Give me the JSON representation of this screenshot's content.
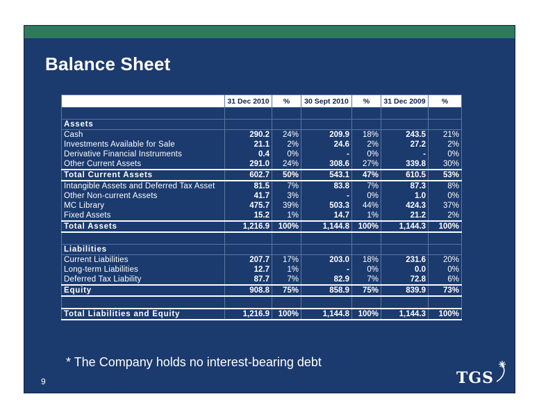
{
  "slide": {
    "title": "Balance Sheet",
    "footnote": "* The Company holds no interest-bearing debt",
    "page_number": "9",
    "logo_text": "TGS",
    "colors": {
      "background": "#1b3a6e",
      "top_bar": "#2f7a5c",
      "text": "#ffffff"
    }
  },
  "table": {
    "headers": [
      "",
      "31 Dec 2010",
      "%",
      "30 Sept 2010",
      "%",
      "31 Dec 2009",
      "%"
    ],
    "rows": [
      {
        "type": "blank",
        "cells": [
          "",
          "",
          "",
          "",
          "",
          "",
          ""
        ]
      },
      {
        "type": "section",
        "cells": [
          "Assets",
          "",
          "",
          "",
          "",
          "",
          ""
        ]
      },
      {
        "type": "row",
        "cells": [
          "Cash",
          "290.2",
          "24%",
          "209.9",
          "18%",
          "243.5",
          "21%"
        ]
      },
      {
        "type": "row",
        "cells": [
          "Investments Available for Sale",
          "21.1",
          "2%",
          "24.6",
          "2%",
          "27.2",
          "2%"
        ]
      },
      {
        "type": "row",
        "cells": [
          "Derivative Financial Instruments",
          "0.4",
          "0%",
          "-",
          "0%",
          "-",
          "0%"
        ]
      },
      {
        "type": "row",
        "cells": [
          "Other Current Assets",
          "291.0",
          "24%",
          "308.6",
          "27%",
          "339.8",
          "30%"
        ]
      },
      {
        "type": "total",
        "cells": [
          "Total Current Assets",
          "602.7",
          "50%",
          "543.1",
          "47%",
          "610.5",
          "53%"
        ]
      },
      {
        "type": "row",
        "cells": [
          "Intangible Assets and Deferred Tax Asset",
          "81.5",
          "7%",
          "83.8",
          "7%",
          "87.3",
          "8%"
        ]
      },
      {
        "type": "row",
        "cells": [
          "Other Non-current Assets",
          "41.7",
          "3%",
          "-",
          "0%",
          "1.0",
          "0%"
        ]
      },
      {
        "type": "row",
        "cells": [
          "MC Library",
          "475.7",
          "39%",
          "503.3",
          "44%",
          "424.3",
          "37%"
        ]
      },
      {
        "type": "row",
        "cells": [
          "Fixed Assets",
          "15.2",
          "1%",
          "14.7",
          "1%",
          "21.2",
          "2%"
        ]
      },
      {
        "type": "total",
        "cells": [
          "Total Assets",
          "1,216.9",
          "100%",
          "1,144.8",
          "100%",
          "1,144.3",
          "100%"
        ]
      },
      {
        "type": "blank",
        "cells": [
          "",
          "",
          "",
          "",
          "",
          "",
          ""
        ]
      },
      {
        "type": "section",
        "cells": [
          "Liabilities",
          "",
          "",
          "",
          "",
          "",
          ""
        ]
      },
      {
        "type": "row",
        "cells": [
          "Current Liabilities",
          "207.7",
          "17%",
          "203.0",
          "18%",
          "231.6",
          "20%"
        ]
      },
      {
        "type": "row",
        "cells": [
          "Long-term Liabilities",
          "12.7",
          "1%",
          "-",
          "0%",
          "0.0",
          "0%"
        ]
      },
      {
        "type": "row",
        "cells": [
          "Deferred Tax Liability",
          "87.7",
          "7%",
          "82.9",
          "7%",
          "72.8",
          "6%"
        ]
      },
      {
        "type": "total",
        "cells": [
          "Equity",
          "908.8",
          "75%",
          "858.9",
          "75%",
          "839.9",
          "73%"
        ]
      },
      {
        "type": "blank",
        "cells": [
          "",
          "",
          "",
          "",
          "",
          "",
          ""
        ]
      },
      {
        "type": "total",
        "cells": [
          "Total Liabilities and Equity",
          "1,216.9",
          "100%",
          "1,144.8",
          "100%",
          "1,144.3",
          "100%"
        ]
      }
    ]
  }
}
